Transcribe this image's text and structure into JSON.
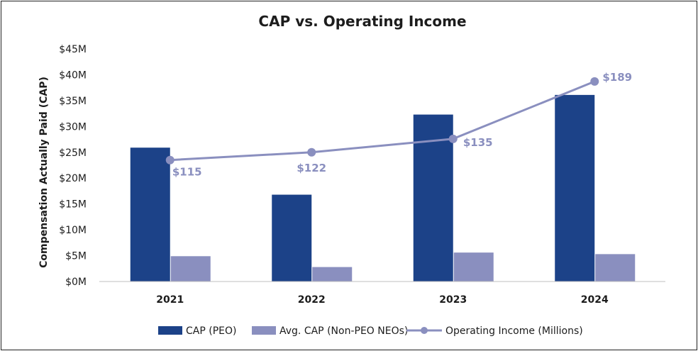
{
  "chart_data": {
    "type": "bar",
    "title": "CAP vs. Operating Income",
    "xlabel": "",
    "ylabel": "Compensation Actually Paid (CAP)",
    "categories": [
      "2021",
      "2022",
      "2023",
      "2024"
    ],
    "ylim": [
      0,
      45
    ],
    "yticks": [
      0,
      5,
      10,
      15,
      20,
      25,
      30,
      35,
      40,
      45
    ],
    "ytick_labels": [
      "$0M",
      "$5M",
      "$10M",
      "$15M",
      "$20M",
      "$25M",
      "$30M",
      "$35M",
      "$40M",
      "$45M"
    ],
    "series": [
      {
        "name": "CAP (PEO)",
        "type": "bar",
        "values": [
          25.9,
          16.8,
          32.3,
          36.1
        ],
        "color": "#1c4288"
      },
      {
        "name": "Avg. CAP (Non-PEO NEOs)",
        "type": "bar",
        "values": [
          4.9,
          2.8,
          5.6,
          5.3
        ],
        "color": "#8a8fbf"
      },
      {
        "name": "Operating Income (Millions)",
        "type": "line",
        "values": [
          115,
          122,
          135,
          189
        ],
        "labels": [
          "$115",
          "$122",
          "$135",
          "$189"
        ],
        "plotted_on_primary_axis_as_millions": [
          23.5,
          25.0,
          27.6,
          38.7
        ],
        "color": "#8a8fbf"
      }
    ],
    "legend_position": "bottom",
    "grid": false
  }
}
